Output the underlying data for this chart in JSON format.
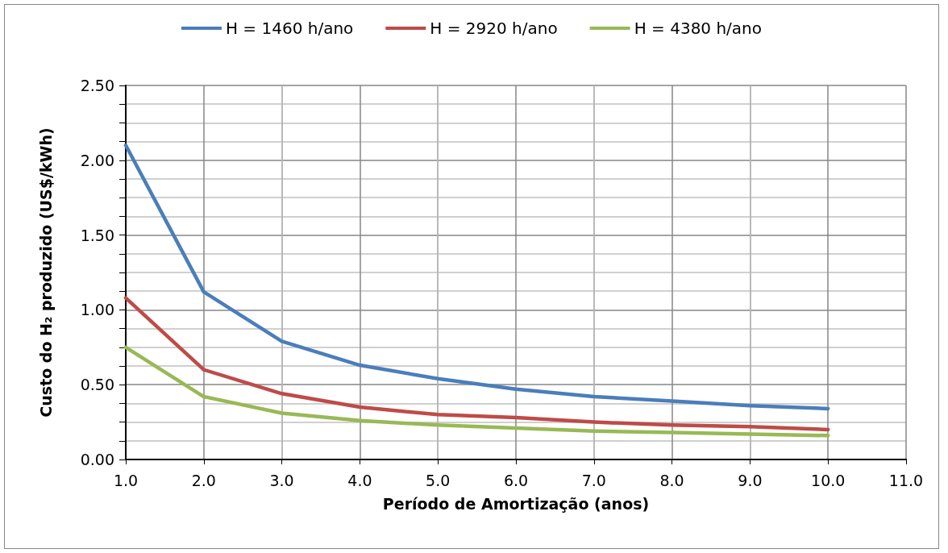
{
  "chart_data": {
    "type": "line",
    "xlabel": "Período de Amortização (anos)",
    "ylabel": "Custo do H₂ produzido (US$/kWh)",
    "x": [
      1,
      2,
      3,
      4,
      5,
      6,
      7,
      8,
      9,
      10
    ],
    "series": [
      {
        "name": "H = 1460 h/ano",
        "color": "#4a7ebb",
        "values": [
          2.1,
          1.12,
          0.79,
          0.63,
          0.54,
          0.47,
          0.42,
          0.39,
          0.36,
          0.34
        ]
      },
      {
        "name": "H = 2920 h/ano",
        "color": "#be4b48",
        "values": [
          1.08,
          0.6,
          0.44,
          0.35,
          0.3,
          0.28,
          0.25,
          0.23,
          0.22,
          0.2
        ]
      },
      {
        "name": "H = 4380 h/ano",
        "color": "#98b954",
        "values": [
          0.75,
          0.42,
          0.31,
          0.26,
          0.23,
          0.21,
          0.19,
          0.18,
          0.17,
          0.16
        ]
      }
    ],
    "xlim": [
      1,
      11
    ],
    "xticks": [
      {
        "value": 1,
        "label": "1.0"
      },
      {
        "value": 2,
        "label": "2.0"
      },
      {
        "value": 3,
        "label": "3.0"
      },
      {
        "value": 4,
        "label": "4.0"
      },
      {
        "value": 5,
        "label": "5.0"
      },
      {
        "value": 6,
        "label": "6.0"
      },
      {
        "value": 7,
        "label": "7.0"
      },
      {
        "value": 8,
        "label": "8.0"
      },
      {
        "value": 9,
        "label": "9.0"
      },
      {
        "value": 10,
        "label": "10.0"
      },
      {
        "value": 11,
        "label": "11.0"
      }
    ],
    "ylim": [
      0,
      2.5
    ],
    "yticks": [
      {
        "value": 0,
        "label": "0.00"
      },
      {
        "value": 0.5,
        "label": "0.50"
      },
      {
        "value": 1,
        "label": "1.00"
      },
      {
        "value": 1.5,
        "label": "1.50"
      },
      {
        "value": 2,
        "label": "2.00"
      },
      {
        "value": 2.5,
        "label": "2.50"
      }
    ],
    "grid": true,
    "legend": "top",
    "marker": "none",
    "line_style": "solid"
  }
}
